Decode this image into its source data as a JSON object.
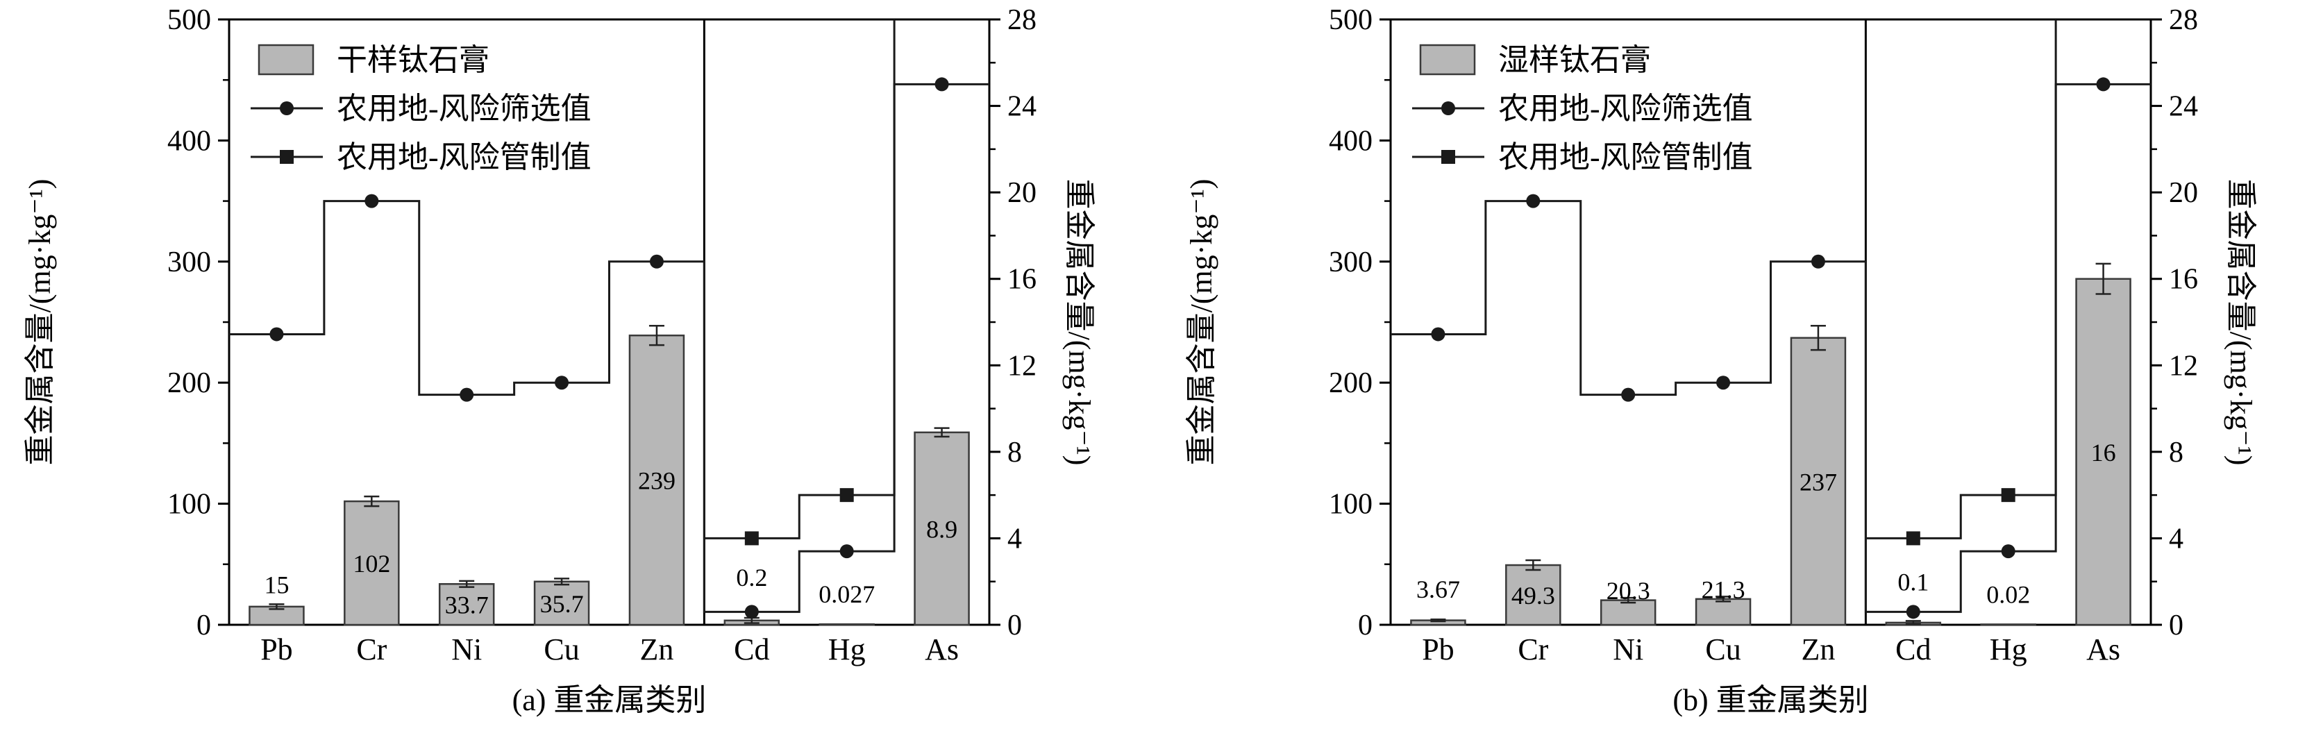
{
  "colors": {
    "bar_fill": "#b7b7b7",
    "bar_stroke": "#3a3a3a",
    "line": "#1a1a1a",
    "axis": "#000000",
    "text": "#000000",
    "background": "#ffffff"
  },
  "chart_data": [
    {
      "type": "bar",
      "panel": "a",
      "caption": "(a) 重金属类别",
      "legend": [
        {
          "type": "bar-swatch",
          "label": "干样钛石膏"
        },
        {
          "type": "line-circle",
          "label": "农用地-风险筛选值"
        },
        {
          "type": "line-square",
          "label": "农用地-风险管制值"
        }
      ],
      "left_axis": {
        "label": "重金属含量/(mg·kg⁻¹)",
        "min": 0,
        "max": 500,
        "major_ticks": [
          0,
          100,
          200,
          300,
          400,
          500
        ],
        "minor_ticks": [
          50,
          150,
          250,
          350,
          450
        ]
      },
      "right_axis": {
        "label": "重金属含量/(mg·kg⁻¹)",
        "min": 0,
        "max": 28,
        "major_ticks": [
          0,
          4,
          8,
          12,
          16,
          20,
          24,
          28
        ],
        "minor_ticks": [
          2,
          6,
          10,
          14,
          18,
          22,
          26
        ]
      },
      "categories": [
        "Pb",
        "Cr",
        "Ni",
        "Cu",
        "Zn",
        "Cd",
        "Hg",
        "As"
      ],
      "right_axis_from_index": 5,
      "bars": {
        "series_name": "干样钛石膏",
        "values": [
          15,
          102,
          33.7,
          35.7,
          239,
          0.2,
          0.027,
          8.9
        ],
        "labels": [
          "15",
          "102",
          "33.7",
          "35.7",
          "239",
          "0.2",
          "0.027",
          "8.9"
        ],
        "errors": [
          2,
          4,
          2.5,
          2.5,
          8,
          0.12,
          0,
          0.2
        ],
        "label_pos": [
          "above",
          "inside",
          "inside",
          "inside",
          "inside",
          "above",
          "above",
          "inside"
        ],
        "label_dy": [
          0,
          0,
          0,
          0,
          0,
          -30,
          -15,
          0
        ]
      },
      "screening": {
        "name": "农用地-风险筛选值",
        "values": [
          240,
          350,
          190,
          200,
          300,
          0.6,
          3.4,
          25
        ]
      },
      "control": {
        "name": "农用地-风险管制值",
        "values": [
          null,
          null,
          null,
          null,
          null,
          4,
          6,
          null
        ],
        "off_scale_after_index": 6
      }
    },
    {
      "type": "bar",
      "panel": "b",
      "caption": "(b) 重金属类别",
      "legend": [
        {
          "type": "bar-swatch",
          "label": "湿样钛石膏"
        },
        {
          "type": "line-circle",
          "label": "农用地-风险筛选值"
        },
        {
          "type": "line-square",
          "label": "农用地-风险管制值"
        }
      ],
      "left_axis": {
        "label": "重金属含量/(mg·kg⁻¹)",
        "min": 0,
        "max": 500,
        "major_ticks": [
          0,
          100,
          200,
          300,
          400,
          500
        ],
        "minor_ticks": [
          50,
          150,
          250,
          350,
          450
        ]
      },
      "right_axis": {
        "label": "重金属含量/(mg·kg⁻¹)",
        "min": 0,
        "max": 28,
        "major_ticks": [
          0,
          4,
          8,
          12,
          16,
          20,
          24,
          28
        ],
        "minor_ticks": [
          2,
          6,
          10,
          14,
          18,
          22,
          26
        ]
      },
      "categories": [
        "Pb",
        "Cr",
        "Ni",
        "Cu",
        "Zn",
        "Cd",
        "Hg",
        "As"
      ],
      "right_axis_from_index": 5,
      "bars": {
        "series_name": "湿样钛石膏",
        "values": [
          3.67,
          49.3,
          20.3,
          21.3,
          237,
          0.1,
          0.02,
          16
        ],
        "labels": [
          "3.67",
          "49.3",
          "20.3",
          "21.3",
          "237",
          "0.1",
          "0.02",
          "16"
        ],
        "errors": [
          0.8,
          4,
          2,
          2,
          10,
          0.08,
          0,
          0.7
        ],
        "label_pos": [
          "above",
          "inside",
          "above",
          "above",
          "inside",
          "above",
          "above",
          "inside"
        ],
        "label_dy": [
          -15,
          0,
          18,
          18,
          0,
          -28,
          -15,
          0
        ]
      },
      "screening": {
        "name": "农用地-风险筛选值",
        "values": [
          240,
          350,
          190,
          200,
          300,
          0.6,
          3.4,
          25
        ]
      },
      "control": {
        "name": "农用地-风险管制值",
        "values": [
          null,
          null,
          null,
          null,
          null,
          4,
          6,
          null
        ],
        "off_scale_after_index": 6
      }
    }
  ]
}
